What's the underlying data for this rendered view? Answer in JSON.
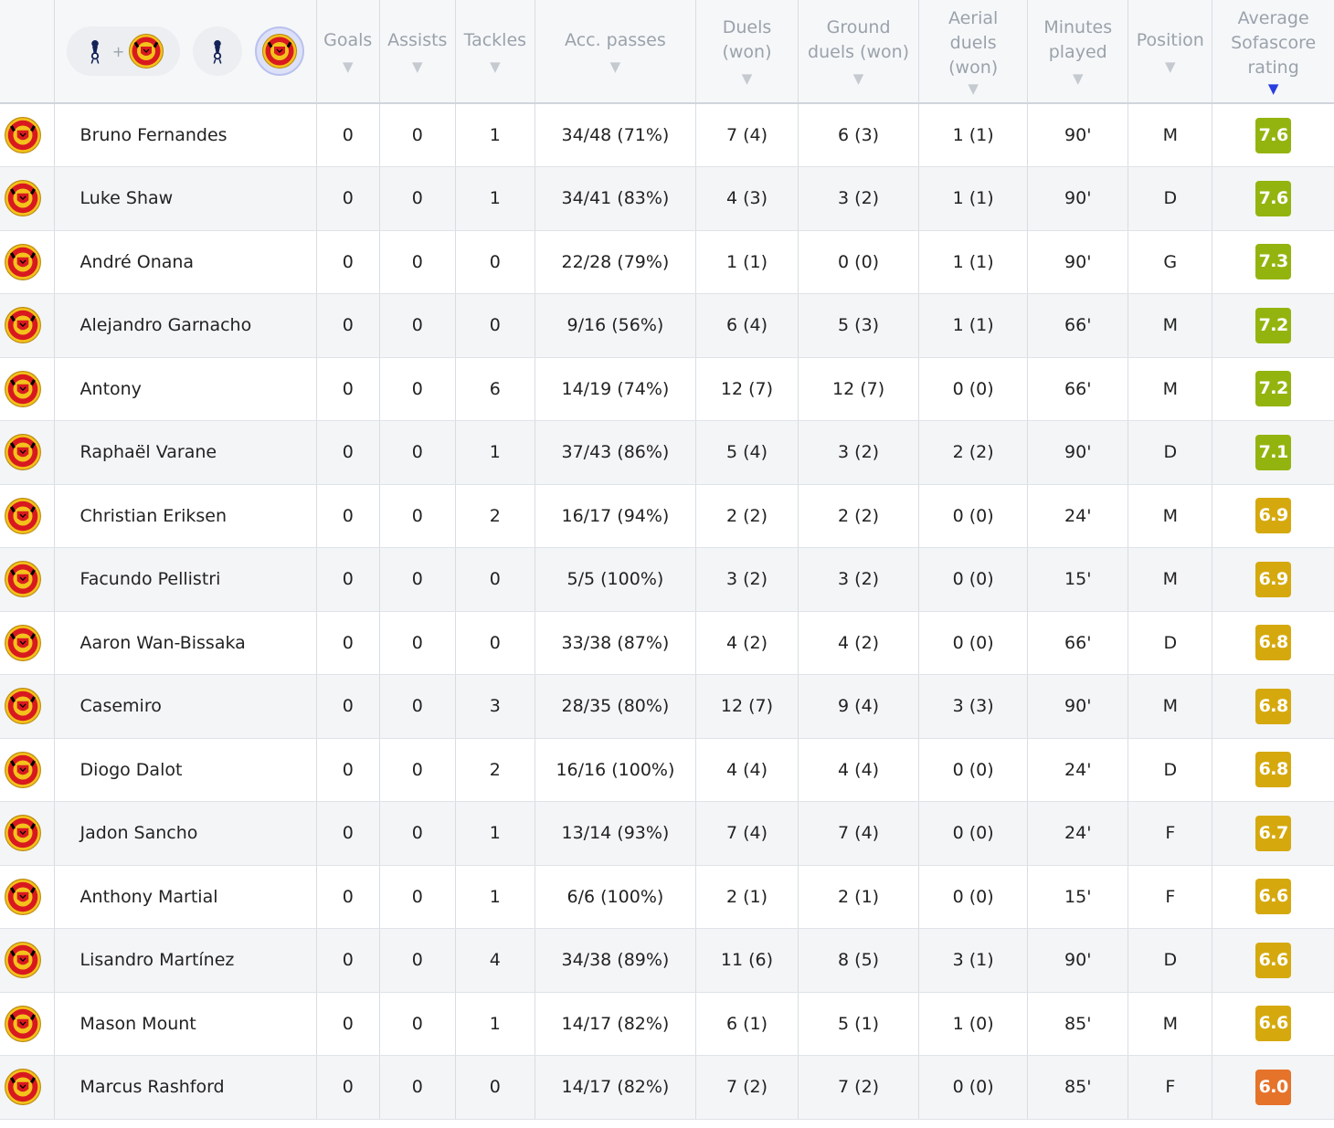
{
  "filters": {
    "both_label": "+",
    "options": [
      "tottenham-crest-icon + man-utd-crest-icon",
      "tottenham-crest-icon",
      "man-utd-crest-icon"
    ],
    "selected": "man-utd-crest-icon"
  },
  "columns": {
    "goals": "Goals",
    "assists": "Assists",
    "tackles": "Tackles",
    "passes": "Acc. passes",
    "duels": "Duels\n(won)",
    "ground": "Ground\nduels (won)",
    "aerial": "Aerial\nduels\n(won)",
    "minutes": "Minutes\nplayed",
    "position": "Position",
    "rating": "Average\nSofascore\nrating",
    "sort_icon": "▼",
    "active_sort_column": "rating"
  },
  "colors": {
    "rating_green": "#93b40f",
    "rating_yellow": "#d5a90e",
    "rating_orange": "#e5732a",
    "active_sort": "#2a3de0",
    "crest_red": "#d81920",
    "crest_gold": "#f3c21b"
  },
  "players": [
    {
      "name": "Bruno Fernandes",
      "goals": "0",
      "assists": "0",
      "tackles": "1",
      "passes": "34/48 (71%)",
      "duels": "7 (4)",
      "ground": "6 (3)",
      "aerial": "1 (1)",
      "minutes": "90'",
      "position": "M",
      "rating": "7.6",
      "rating_color": "#93b40f"
    },
    {
      "name": "Luke Shaw",
      "goals": "0",
      "assists": "0",
      "tackles": "1",
      "passes": "34/41 (83%)",
      "duels": "4 (3)",
      "ground": "3 (2)",
      "aerial": "1 (1)",
      "minutes": "90'",
      "position": "D",
      "rating": "7.6",
      "rating_color": "#93b40f"
    },
    {
      "name": "André Onana",
      "goals": "0",
      "assists": "0",
      "tackles": "0",
      "passes": "22/28 (79%)",
      "duels": "1 (1)",
      "ground": "0 (0)",
      "aerial": "1 (1)",
      "minutes": "90'",
      "position": "G",
      "rating": "7.3",
      "rating_color": "#93b40f"
    },
    {
      "name": "Alejandro Garnacho",
      "goals": "0",
      "assists": "0",
      "tackles": "0",
      "passes": "9/16 (56%)",
      "duels": "6 (4)",
      "ground": "5 (3)",
      "aerial": "1 (1)",
      "minutes": "66'",
      "position": "M",
      "rating": "7.2",
      "rating_color": "#93b40f"
    },
    {
      "name": "Antony",
      "goals": "0",
      "assists": "0",
      "tackles": "6",
      "passes": "14/19 (74%)",
      "duels": "12 (7)",
      "ground": "12 (7)",
      "aerial": "0 (0)",
      "minutes": "66'",
      "position": "M",
      "rating": "7.2",
      "rating_color": "#93b40f"
    },
    {
      "name": "Raphaël Varane",
      "goals": "0",
      "assists": "0",
      "tackles": "1",
      "passes": "37/43 (86%)",
      "duels": "5 (4)",
      "ground": "3 (2)",
      "aerial": "2 (2)",
      "minutes": "90'",
      "position": "D",
      "rating": "7.1",
      "rating_color": "#93b40f"
    },
    {
      "name": "Christian Eriksen",
      "goals": "0",
      "assists": "0",
      "tackles": "2",
      "passes": "16/17 (94%)",
      "duels": "2 (2)",
      "ground": "2 (2)",
      "aerial": "0 (0)",
      "minutes": "24'",
      "position": "M",
      "rating": "6.9",
      "rating_color": "#d5a90e"
    },
    {
      "name": "Facundo Pellistri",
      "goals": "0",
      "assists": "0",
      "tackles": "0",
      "passes": "5/5 (100%)",
      "duels": "3 (2)",
      "ground": "3 (2)",
      "aerial": "0 (0)",
      "minutes": "15'",
      "position": "M",
      "rating": "6.9",
      "rating_color": "#d5a90e"
    },
    {
      "name": "Aaron Wan-Bissaka",
      "goals": "0",
      "assists": "0",
      "tackles": "0",
      "passes": "33/38 (87%)",
      "duels": "4 (2)",
      "ground": "4 (2)",
      "aerial": "0 (0)",
      "minutes": "66'",
      "position": "D",
      "rating": "6.8",
      "rating_color": "#d5a90e"
    },
    {
      "name": "Casemiro",
      "goals": "0",
      "assists": "0",
      "tackles": "3",
      "passes": "28/35 (80%)",
      "duels": "12 (7)",
      "ground": "9 (4)",
      "aerial": "3 (3)",
      "minutes": "90'",
      "position": "M",
      "rating": "6.8",
      "rating_color": "#d5a90e"
    },
    {
      "name": "Diogo Dalot",
      "goals": "0",
      "assists": "0",
      "tackles": "2",
      "passes": "16/16 (100%)",
      "duels": "4 (4)",
      "ground": "4 (4)",
      "aerial": "0 (0)",
      "minutes": "24'",
      "position": "D",
      "rating": "6.8",
      "rating_color": "#d5a90e"
    },
    {
      "name": "Jadon Sancho",
      "goals": "0",
      "assists": "0",
      "tackles": "1",
      "passes": "13/14 (93%)",
      "duels": "7 (4)",
      "ground": "7 (4)",
      "aerial": "0 (0)",
      "minutes": "24'",
      "position": "F",
      "rating": "6.7",
      "rating_color": "#d5a90e"
    },
    {
      "name": "Anthony Martial",
      "goals": "0",
      "assists": "0",
      "tackles": "1",
      "passes": "6/6 (100%)",
      "duels": "2 (1)",
      "ground": "2 (1)",
      "aerial": "0 (0)",
      "minutes": "15'",
      "position": "F",
      "rating": "6.6",
      "rating_color": "#d5a90e"
    },
    {
      "name": "Lisandro Martínez",
      "goals": "0",
      "assists": "0",
      "tackles": "4",
      "passes": "34/38 (89%)",
      "duels": "11 (6)",
      "ground": "8 (5)",
      "aerial": "3 (1)",
      "minutes": "90'",
      "position": "D",
      "rating": "6.6",
      "rating_color": "#d5a90e"
    },
    {
      "name": "Mason Mount",
      "goals": "0",
      "assists": "0",
      "tackles": "1",
      "passes": "14/17 (82%)",
      "duels": "6 (1)",
      "ground": "5 (1)",
      "aerial": "1 (0)",
      "minutes": "85'",
      "position": "M",
      "rating": "6.6",
      "rating_color": "#d5a90e"
    },
    {
      "name": "Marcus Rashford",
      "goals": "0",
      "assists": "0",
      "tackles": "0",
      "passes": "14/17 (82%)",
      "duels": "7 (2)",
      "ground": "7 (2)",
      "aerial": "0 (0)",
      "minutes": "85'",
      "position": "F",
      "rating": "6.0",
      "rating_color": "#e5732a"
    }
  ]
}
